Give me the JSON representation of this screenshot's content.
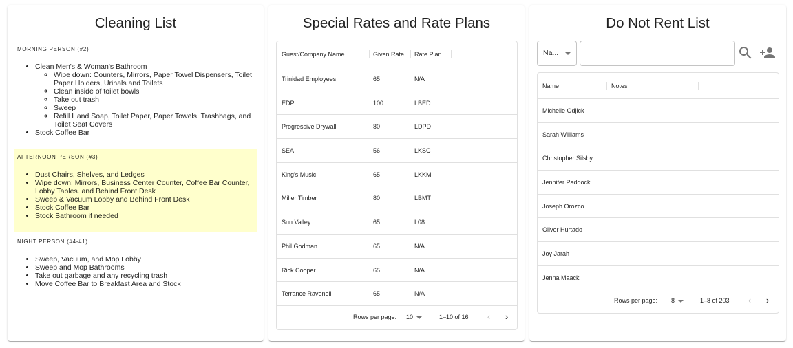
{
  "cleaning": {
    "title": "Cleaning List",
    "highlight_color": "#ffffcc",
    "morning": {
      "heading": "MORNING PERSON (#2)",
      "item1": "Clean Men's & Woman's Bathroom",
      "sub1": "Wipe down: Counters, Mirrors, Paper Towel Dispensers, Toilet Paper Holders, Urinals and Toilets",
      "sub2": "Clean inside of toilet bowls",
      "sub3": "Take out trash",
      "sub4": "Sweep",
      "sub5": "Refill Hand Soap, Toilet Paper, Paper Towels, Trashbags, and Toilet Seat Covers",
      "item2": "Stock Coffee Bar"
    },
    "afternoon": {
      "heading": "AFTERNOON PERSON (#3)",
      "item1": "Dust Chairs, Shelves, and Ledges",
      "item2": "Wipe down: Mirrors, Business Center Counter, Coffee Bar Counter, Lobby Tables. and Behind Front Desk",
      "item3": "Sweep & Vacuum Lobby and Behind Front Desk",
      "item4": "Stock Coffee Bar",
      "item5": "Stock Bathroom if needed"
    },
    "night": {
      "heading": "NIGHT PERSON (#4-#1)",
      "item1": "Sweep, Vacuum, and Mop Lobby",
      "item2": "Sweep and Mop Bathrooms",
      "item3": "Take out garbage and any recycling trash",
      "item4": "Move Coffee Bar to Breakfast Area and Stock"
    }
  },
  "rates": {
    "title": "Special Rates and Rate Plans",
    "headers": {
      "name": "Guest/Company Name",
      "rate": "Given Rate",
      "plan": "Rate Plan"
    },
    "rows": [
      {
        "name": "Trinidad Employees",
        "rate": "65",
        "plan": "N/A"
      },
      {
        "name": "EDP",
        "rate": "100",
        "plan": "LBED"
      },
      {
        "name": "Progressive Drywall",
        "rate": "80",
        "plan": "LDPD"
      },
      {
        "name": "SEA",
        "rate": "56",
        "plan": "LKSC"
      },
      {
        "name": "King's Music",
        "rate": "65",
        "plan": "LKKM"
      },
      {
        "name": "Miller Timber",
        "rate": "80",
        "plan": "LBMT"
      },
      {
        "name": "Sun Valley",
        "rate": "65",
        "plan": "L08"
      },
      {
        "name": "Phil Godman",
        "rate": "65",
        "plan": "N/A"
      },
      {
        "name": "Rick Cooper",
        "rate": "65",
        "plan": "N/A"
      },
      {
        "name": "Terrance Ravenell",
        "rate": "65",
        "plan": "N/A"
      }
    ],
    "footer": {
      "rows_label": "Rows per page:",
      "rows_value": "10",
      "range": "1–10 of 16"
    }
  },
  "dnr": {
    "title": "Do Not Rent List",
    "field_select": "Na...",
    "search_value": "",
    "search_icon": "search-icon",
    "add_icon": "person-add-icon",
    "headers": {
      "name": "Name",
      "notes": "Notes"
    },
    "rows": [
      {
        "name": "Michelle Odjick",
        "notes": ""
      },
      {
        "name": "Sarah Williams",
        "notes": ""
      },
      {
        "name": "Christopher Silsby",
        "notes": ""
      },
      {
        "name": "Jennifer Paddock",
        "notes": ""
      },
      {
        "name": "Joseph Orozco",
        "notes": ""
      },
      {
        "name": "Oliver Hurtado",
        "notes": ""
      },
      {
        "name": "Joy Jarah",
        "notes": ""
      },
      {
        "name": "Jenna Maack",
        "notes": ""
      }
    ],
    "footer": {
      "rows_label": "Rows per page:",
      "rows_value": "8",
      "range": "1–8 of 203"
    }
  }
}
